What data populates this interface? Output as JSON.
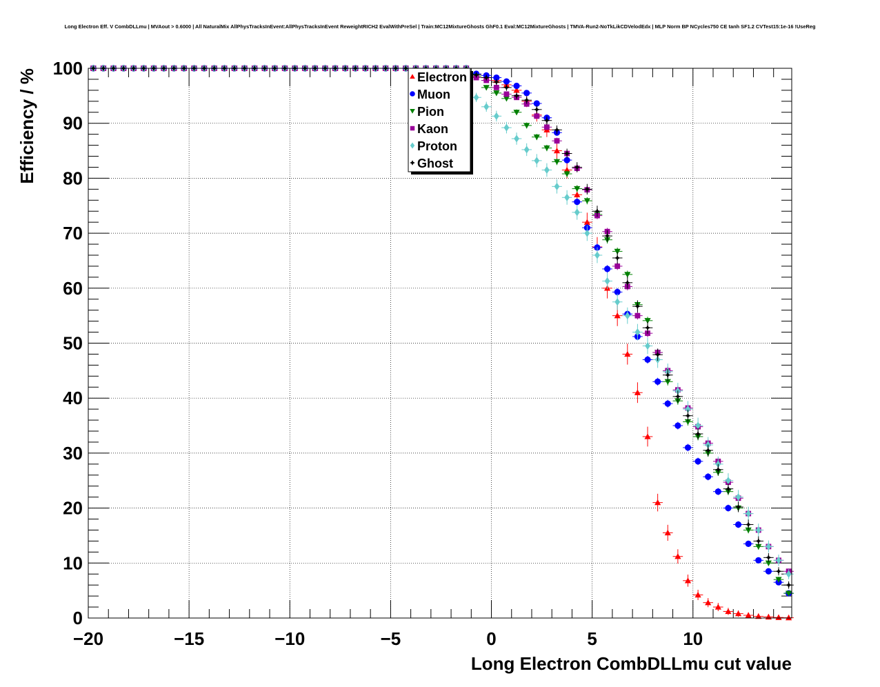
{
  "chart_data": {
    "type": "scatter",
    "title": "Long Electron Eff. V CombDLLmu | MVAout > 0.6000 | All NaturalMix AllPhysTracksInEvent:AllPhysTracksInEvent ReweightRICH2 EvalWithPreSel | Train:MC12MixtureGhosts GhF0.1 Eval:MC12MixtureGhosts | TMVA-Run2-NoTkLikCDVelodEdx | MLP Norm BP NCycles750 CE tanh SF1.2 CVTest15:1e-16 !UseReg",
    "xlabel": "Long Electron CombDLLmu cut value",
    "ylabel": "Efficiency / %",
    "xlim": [
      -20,
      14.9
    ],
    "ylim": [
      0,
      100
    ],
    "grid": true,
    "legend_position": "top-center",
    "xticks": [
      -20,
      -15,
      -10,
      -5,
      0,
      5,
      10
    ],
    "xtick_labels": [
      "−20",
      "−15",
      "−10",
      "−5",
      "0",
      "5",
      "10"
    ],
    "yticks": [
      0,
      10,
      20,
      30,
      40,
      50,
      60,
      70,
      80,
      90,
      100
    ],
    "ytick_labels": [
      "0",
      "10",
      "20",
      "30",
      "40",
      "50",
      "60",
      "70",
      "80",
      "90",
      "100"
    ],
    "x": [
      -19.75,
      -19.25,
      -18.75,
      -18.25,
      -17.75,
      -17.25,
      -16.75,
      -16.25,
      -15.75,
      -15.25,
      -14.75,
      -14.25,
      -13.75,
      -13.25,
      -12.75,
      -12.25,
      -11.75,
      -11.25,
      -10.75,
      -10.25,
      -9.75,
      -9.25,
      -8.75,
      -8.25,
      -7.75,
      -7.25,
      -6.75,
      -6.25,
      -5.75,
      -5.25,
      -4.75,
      -4.25,
      -3.75,
      -3.25,
      -2.75,
      -2.25,
      -1.75,
      -1.25,
      -0.75,
      -0.25,
      0.25,
      0.75,
      1.25,
      1.75,
      2.25,
      2.75,
      3.25,
      3.75,
      4.25,
      4.75,
      5.25,
      5.75,
      6.25,
      6.75,
      7.25,
      7.75,
      8.25,
      8.75,
      9.25,
      9.75,
      10.25,
      10.75,
      11.25,
      11.75,
      12.25,
      12.75,
      13.25,
      13.75,
      14.25,
      14.75
    ],
    "series": [
      {
        "name": "Electron",
        "marker": "triangle-up",
        "color": "#ff0000",
        "err": 1.6,
        "values": [
          100,
          100,
          100,
          100,
          100,
          100,
          100,
          100,
          100,
          100,
          100,
          100,
          100,
          100,
          100,
          100,
          100,
          100,
          100,
          100,
          100,
          100,
          100,
          100,
          100,
          100,
          100,
          100,
          100,
          100,
          100,
          100,
          100,
          100,
          100,
          100,
          100,
          100,
          98.8,
          98.3,
          97.8,
          97.0,
          96.0,
          94.0,
          91.5,
          88.8,
          85.0,
          81.5,
          77.0,
          72.0,
          67.5,
          60.0,
          55.0,
          48.0,
          41.0,
          33.0,
          21.0,
          15.5,
          11.2,
          6.8,
          4.2,
          2.8,
          2.0,
          1.2,
          0.8,
          0.5,
          0.3,
          0.2,
          0.1,
          0.05
        ]
      },
      {
        "name": "Muon",
        "marker": "circle",
        "color": "#0000ff",
        "err": 0.4,
        "values": [
          100,
          100,
          100,
          100,
          100,
          100,
          100,
          100,
          100,
          100,
          100,
          100,
          100,
          100,
          100,
          100,
          100,
          100,
          100,
          100,
          100,
          100,
          100,
          100,
          100,
          100,
          100,
          100,
          100,
          100,
          100,
          100,
          100,
          100,
          100,
          100,
          100,
          100,
          99.0,
          98.7,
          98.3,
          97.6,
          96.8,
          95.5,
          93.6,
          91.0,
          88.3,
          83.3,
          75.7,
          71.0,
          67.4,
          63.5,
          59.3,
          55.3,
          51.2,
          47.0,
          43.0,
          39.0,
          35.0,
          31.0,
          28.5,
          25.7,
          23.0,
          20.0,
          17.0,
          13.5,
          10.5,
          8.5,
          6.5,
          4.5
        ]
      },
      {
        "name": "Pion",
        "marker": "triangle-down",
        "color": "#008000",
        "err": 0.4,
        "values": [
          100,
          100,
          100,
          100,
          100,
          100,
          100,
          100,
          100,
          100,
          100,
          100,
          100,
          100,
          100,
          100,
          100,
          100,
          100,
          100,
          100,
          100,
          100,
          100,
          100,
          100,
          100,
          100,
          100,
          100,
          100,
          100,
          100,
          100,
          100,
          100,
          100,
          100,
          98.5,
          96.5,
          95.5,
          94.5,
          92.0,
          89.6,
          87.5,
          85.5,
          83.0,
          80.8,
          78.1,
          75.9,
          73.4,
          68.8,
          66.7,
          62.5,
          57.0,
          54.1,
          48.3,
          43.0,
          39.5,
          35.7,
          33.0,
          30.0,
          26.5,
          23.0,
          20.0,
          16.0,
          13.0,
          10.0,
          7.0,
          4.5
        ]
      },
      {
        "name": "Kaon",
        "marker": "square",
        "color": "#990099",
        "err": 0.4,
        "values": [
          100,
          100,
          100,
          100,
          100,
          100,
          100,
          100,
          100,
          100,
          100,
          100,
          100,
          100,
          100,
          100,
          100,
          100,
          100,
          100,
          100,
          100,
          100,
          100,
          100,
          100,
          100,
          100,
          100,
          100,
          100,
          100,
          100,
          100,
          100,
          100,
          100,
          100,
          98.3,
          97.8,
          96.5,
          95.3,
          94.7,
          93.5,
          91.3,
          89.3,
          86.8,
          84.5,
          81.8,
          77.9,
          73.2,
          70.3,
          64.0,
          60.3,
          55.0,
          51.8,
          48.3,
          45.0,
          41.5,
          38.2,
          34.8,
          31.8,
          28.5,
          24.7,
          21.8,
          19.0,
          16.0,
          13.0,
          10.5,
          8.5
        ]
      },
      {
        "name": "Proton",
        "marker": "diamond",
        "color": "#66cccc",
        "err": 1.2,
        "values": [
          100,
          100,
          100,
          100,
          100,
          100,
          100,
          100,
          100,
          100,
          100,
          100,
          100,
          100,
          100,
          100,
          100,
          100,
          100,
          100,
          100,
          100,
          100,
          100,
          100,
          100,
          100,
          100,
          100,
          100,
          100,
          100,
          100,
          100,
          100,
          100,
          100,
          100,
          94.7,
          93.0,
          91.3,
          89.2,
          87.2,
          85.2,
          83.2,
          81.5,
          78.5,
          76.5,
          73.8,
          70.0,
          66.0,
          61.3,
          57.5,
          55.0,
          52.0,
          49.5,
          47.0,
          44.8,
          41.3,
          38.0,
          35.0,
          31.5,
          28.0,
          25.0,
          22.0,
          19.0,
          16.0,
          13.0,
          10.5,
          8.0
        ]
      },
      {
        "name": "Ghost",
        "marker": "cross",
        "color": "#000000",
        "err": 0.8,
        "values": [
          100,
          100,
          100,
          100,
          100,
          100,
          100,
          100,
          100,
          100,
          100,
          100,
          100,
          100,
          100,
          100,
          100,
          100,
          100,
          100,
          100,
          100,
          100,
          100,
          100,
          100,
          100,
          100,
          100,
          100,
          100,
          100,
          100,
          100,
          100,
          100,
          100,
          100,
          98.8,
          98.3,
          97.5,
          96.5,
          95.0,
          94.2,
          92.5,
          90.5,
          88.8,
          84.5,
          82.0,
          78.0,
          74.0,
          69.5,
          65.5,
          61.0,
          56.7,
          52.8,
          47.9,
          44.2,
          40.3,
          36.8,
          33.5,
          30.5,
          27.0,
          23.5,
          20.2,
          17.0,
          14.0,
          11.0,
          8.5,
          6.0
        ]
      }
    ]
  }
}
